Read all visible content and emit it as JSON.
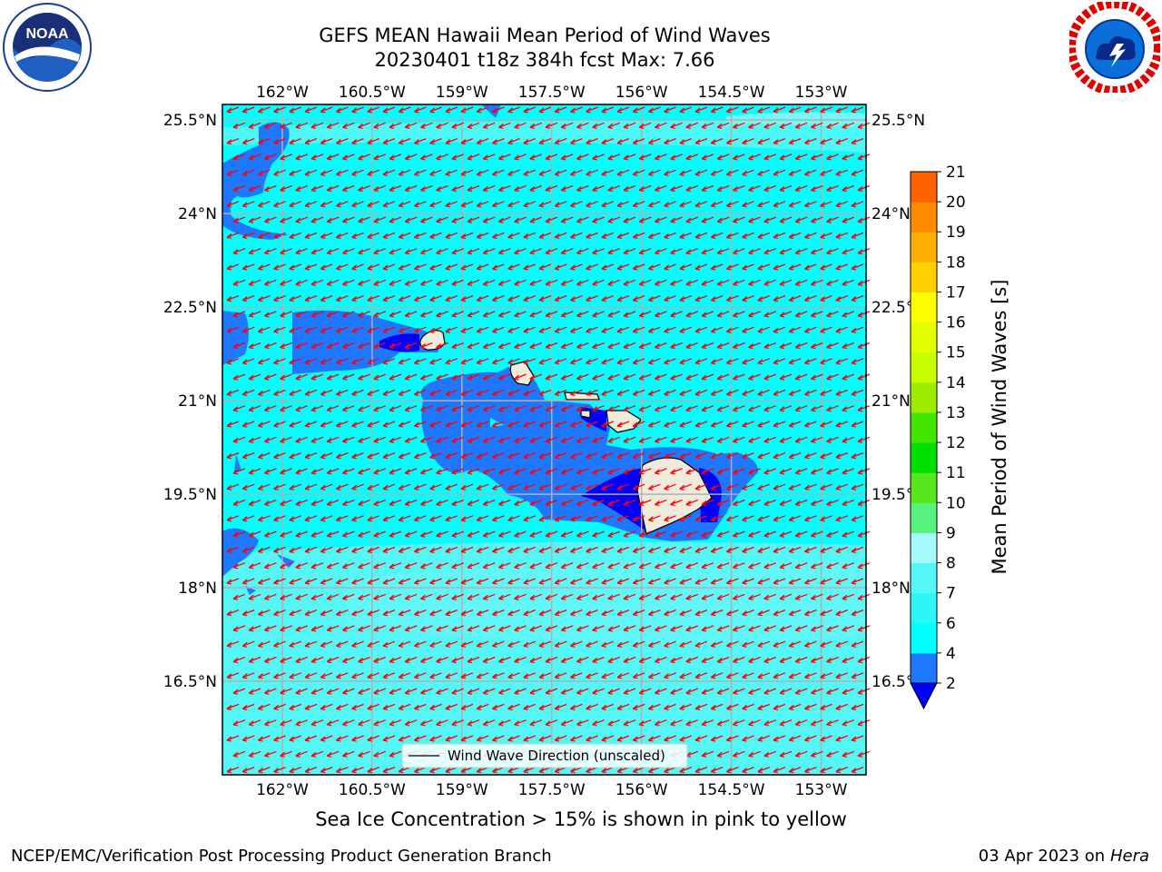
{
  "header": {
    "title_line1": "GEFS MEAN Hawaii Mean Period of Wind Waves",
    "title_line2": "20230401 t18z 384h fcst   Max: 7.66"
  },
  "logos": {
    "left": {
      "name": "noaa-logo",
      "text": "NOAA",
      "ring_text": "NATIONAL OCEANIC AND ATMOSPHERIC ADMINISTRATION · U.S. DEPARTMENT OF COMMERCE"
    },
    "right": {
      "name": "nws-logo",
      "ring_text": "NATIONAL WEATHER SERVICE"
    }
  },
  "footer": {
    "sea_ice_note": "Sea Ice Concentration > 15% is shown in pink to yellow",
    "credit": "NCEP/EMC/Verification Post Processing Product Generation Branch",
    "date_prefix": "03 Apr 2023 on ",
    "date_machine": "Hera"
  },
  "chart_data": {
    "type": "heatmap",
    "title": "GEFS MEAN Hawaii Mean Period of Wind Waves",
    "subtitle": "20230401 t18z 384h fcst   Max: 7.66",
    "x_ticks": [
      "162°W",
      "160.5°W",
      "159°W",
      "157.5°W",
      "156°W",
      "154.5°W",
      "153°W"
    ],
    "x_tick_values": [
      -162,
      -160.5,
      -159,
      -157.5,
      -156,
      -154.5,
      -153
    ],
    "y_ticks": [
      "25.5°N",
      "24°N",
      "22.5°N",
      "21°N",
      "19.5°N",
      "18°N",
      "16.5°N"
    ],
    "y_tick_values": [
      25.5,
      24,
      22.5,
      21,
      19.5,
      18,
      16.5
    ],
    "xlim": [
      -163,
      -152.25
    ],
    "ylim": [
      15,
      25.75
    ],
    "grid": true,
    "legend": {
      "label": "Wind Wave Direction (unscaled)",
      "placement": "bottom-center"
    },
    "colorbar": {
      "label": "Mean Period of Wind Waves [s]",
      "ticks": [
        2,
        4,
        6,
        7,
        8,
        9,
        10,
        11,
        12,
        13,
        14,
        15,
        16,
        17,
        18,
        19,
        20,
        21
      ],
      "colors": [
        "#1e78ff",
        "#00ffff",
        "#2cf6f6",
        "#54f6f6",
        "#a6f9f9",
        "#58f37e",
        "#56e61d",
        "#00e000",
        "#43e600",
        "#9dec00",
        "#c8ff00",
        "#e1ff00",
        "#ffff00",
        "#ffd000",
        "#ffb000",
        "#ff8c00",
        "#ff6000",
        "#ff3000",
        "#ff0000"
      ],
      "extend_min_color": "#0000ff"
    },
    "arrow_direction": "toward southwest (from east-northeast)",
    "arrow_color": "#ff0000",
    "field_max": 7.66
  }
}
